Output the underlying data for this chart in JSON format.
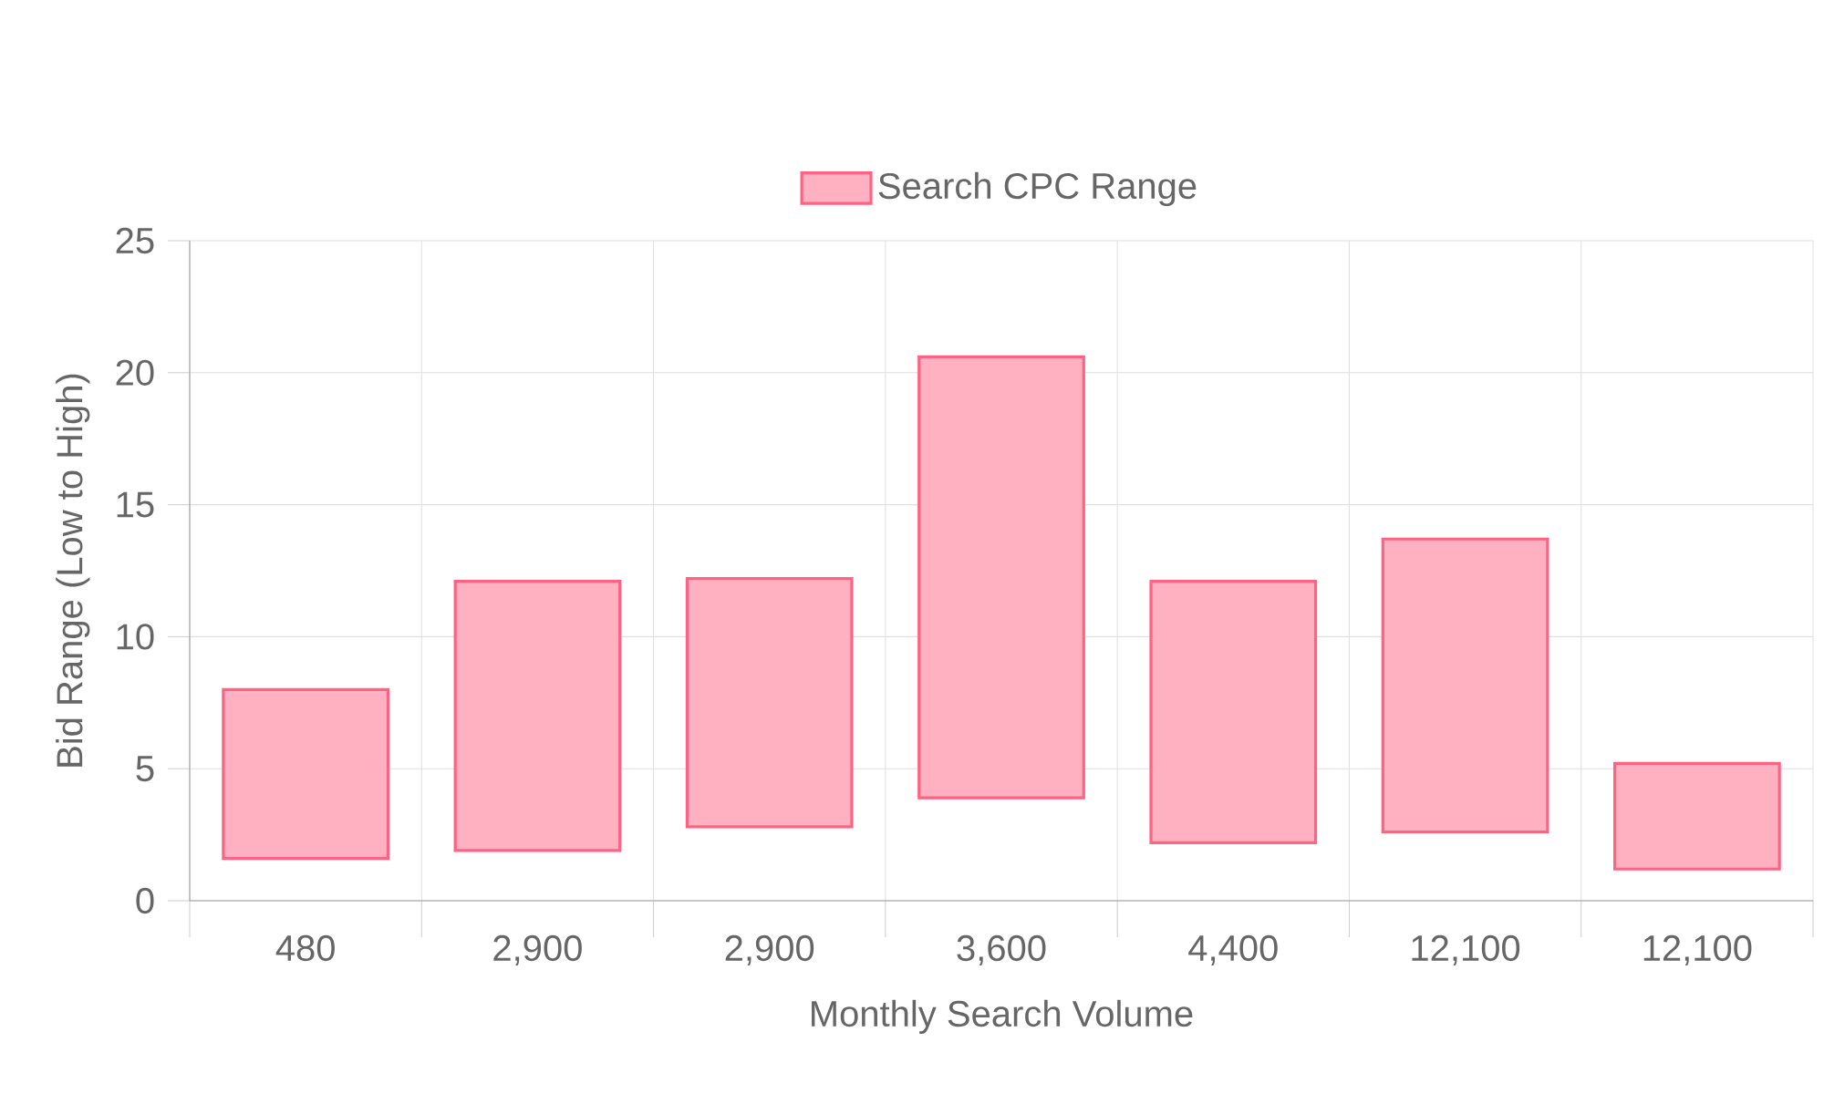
{
  "chart_data": {
    "type": "bar",
    "xlabel": "Monthly Search Volume",
    "ylabel": "Bid Range (Low to High)",
    "categories": [
      "480",
      "2,900",
      "2,900",
      "3,600",
      "4,400",
      "12,100",
      "12,100"
    ],
    "series": [
      {
        "name": "Search CPC Range",
        "color": "#ff6384",
        "base": [
          1.6,
          1.9,
          2.8,
          3.9,
          2.2,
          2.6,
          1.2
        ],
        "values": [
          6.4,
          10.2,
          9.4,
          16.7,
          9.9,
          11.1,
          4.0
        ]
      }
    ],
    "ylim": [
      0,
      25
    ],
    "yticks": [
      0,
      5,
      10,
      15,
      20,
      25
    ],
    "grid": true,
    "legend": "top"
  }
}
